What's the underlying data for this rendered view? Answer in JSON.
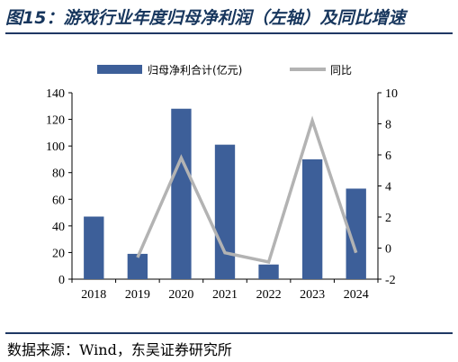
{
  "figure": {
    "title": "图15：游戏行业年度归母净利润（左轴）及同比增速",
    "source": "数据来源：Wind，东吴证券研究所"
  },
  "colors": {
    "bar": "#3d5f99",
    "line": "#b3b3b3",
    "title": "#17365d",
    "rule": "#1f3864"
  },
  "chart_data": {
    "type": "bar",
    "categories": [
      "2018",
      "2019",
      "2020",
      "2021",
      "2022",
      "2023",
      "2024"
    ],
    "series": [
      {
        "name": "归母净利合计(亿元)",
        "type": "bar",
        "axis": "left",
        "values": [
          47,
          19,
          128,
          101,
          11,
          90,
          68
        ]
      },
      {
        "name": "同比",
        "type": "line",
        "axis": "right",
        "values": [
          null,
          -0.6,
          5.8,
          -0.3,
          -0.9,
          8.2,
          -0.3
        ]
      }
    ],
    "y_left": {
      "lim": [
        0,
        140
      ],
      "ticks": [
        0,
        20,
        40,
        60,
        80,
        100,
        120,
        140
      ]
    },
    "y_right": {
      "lim": [
        -2,
        10
      ],
      "ticks": [
        -2,
        0,
        2,
        4,
        6,
        8,
        10
      ]
    },
    "legend": "top-center",
    "grid": false
  }
}
